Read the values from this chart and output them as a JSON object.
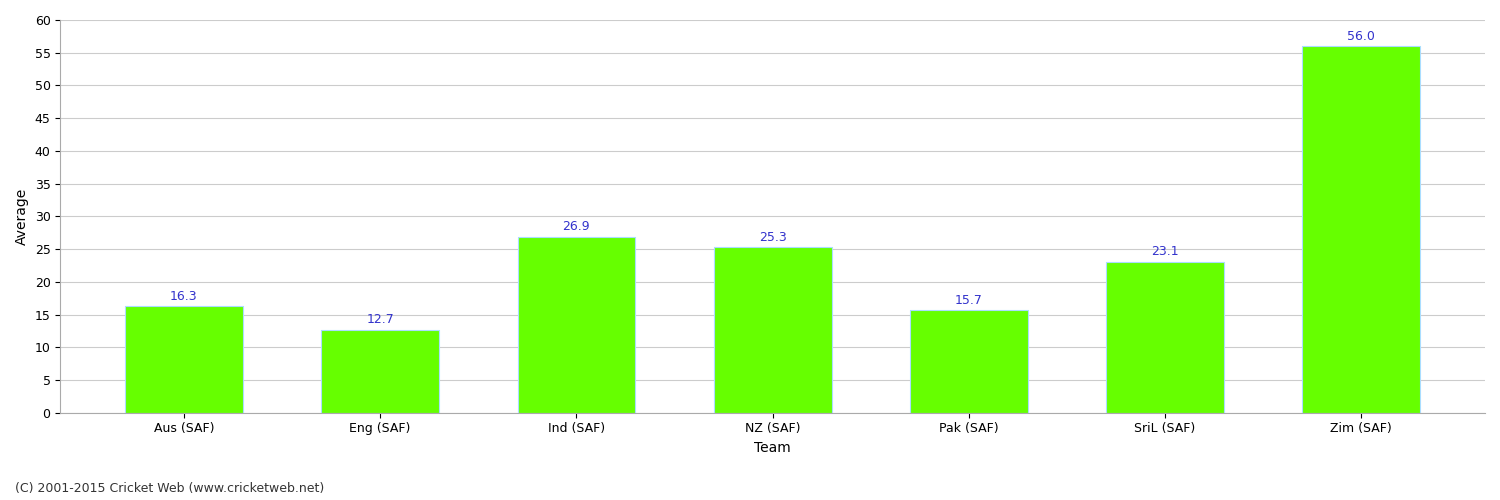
{
  "categories": [
    "Aus (SAF)",
    "Eng (SAF)",
    "Ind (SAF)",
    "NZ (SAF)",
    "Pak (SAF)",
    "SriL (SAF)",
    "Zim (SAF)"
  ],
  "values": [
    16.3,
    12.7,
    26.9,
    25.3,
    15.7,
    23.1,
    56.0
  ],
  "bar_color": "#66ff00",
  "bar_edge_color": "#aaddff",
  "label_color": "#3333cc",
  "xlabel": "Team",
  "ylabel": "Average",
  "ylim": [
    0,
    60
  ],
  "yticks": [
    0,
    5,
    10,
    15,
    20,
    25,
    30,
    35,
    40,
    45,
    50,
    55,
    60
  ],
  "grid_color": "#cccccc",
  "background_color": "#ffffff",
  "footer": "(C) 2001-2015 Cricket Web (www.cricketweb.net)",
  "label_fontsize": 9,
  "axis_label_fontsize": 10,
  "tick_fontsize": 9,
  "footer_fontsize": 9
}
